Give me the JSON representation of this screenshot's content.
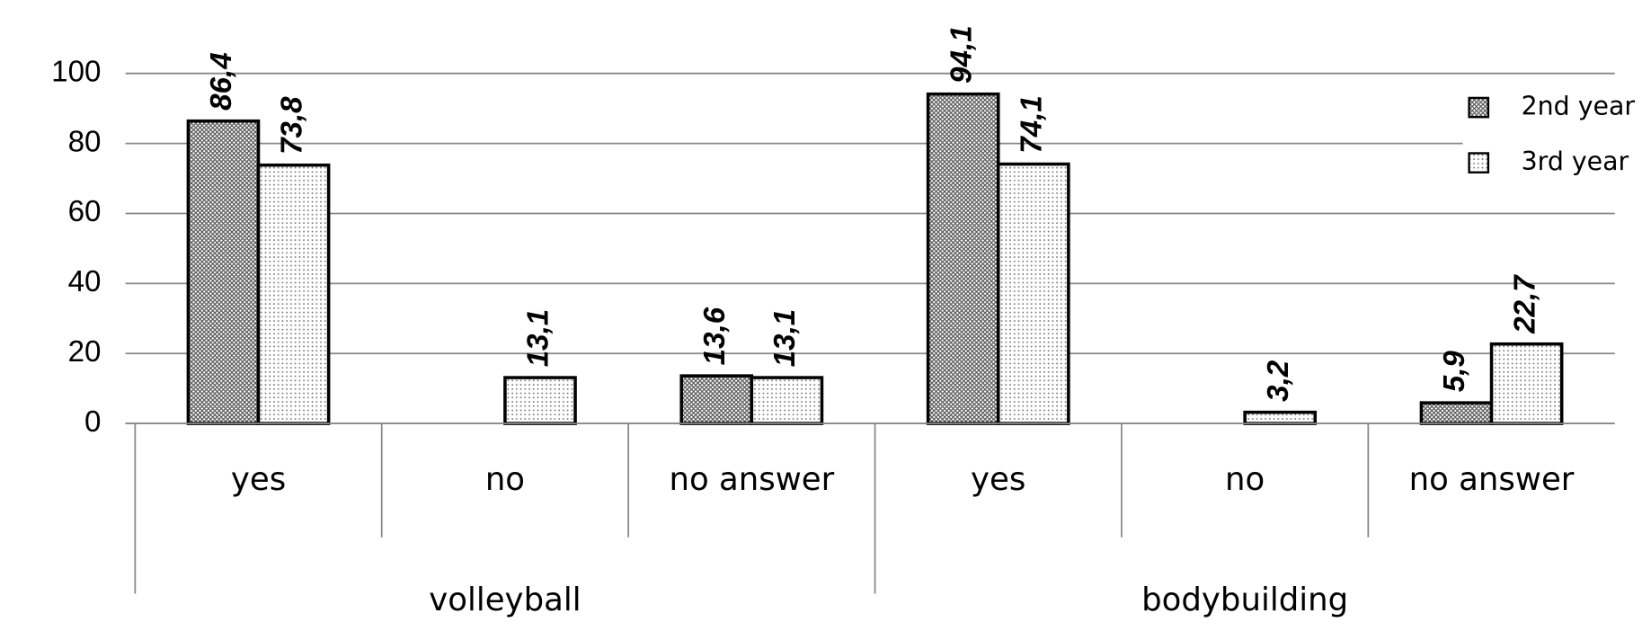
{
  "chart_data": {
    "type": "bar",
    "categories": [
      "yes",
      "no",
      "no answer",
      "yes",
      "no",
      "no answer"
    ],
    "group_labels": [
      "volleyball",
      "bodybuilding"
    ],
    "series": [
      {
        "name": "2nd year",
        "color": "#555555",
        "values": [
          86.4,
          null,
          13.6,
          94.1,
          null,
          5.9
        ],
        "value_labels": [
          "86,4",
          null,
          "13,6",
          "94,1",
          null,
          "5,9"
        ]
      },
      {
        "name": "3rd year",
        "color": "#666666",
        "values": [
          73.8,
          13.1,
          13.1,
          74.1,
          3.2,
          22.7
        ],
        "value_labels": [
          "73,8",
          "13,1",
          "13,1",
          "74,1",
          "3,2",
          "22,7"
        ]
      }
    ],
    "ylim": [
      0,
      100
    ],
    "yticks": [
      0,
      20,
      40,
      60,
      80,
      100
    ],
    "grid": true,
    "legend": "upper right"
  }
}
